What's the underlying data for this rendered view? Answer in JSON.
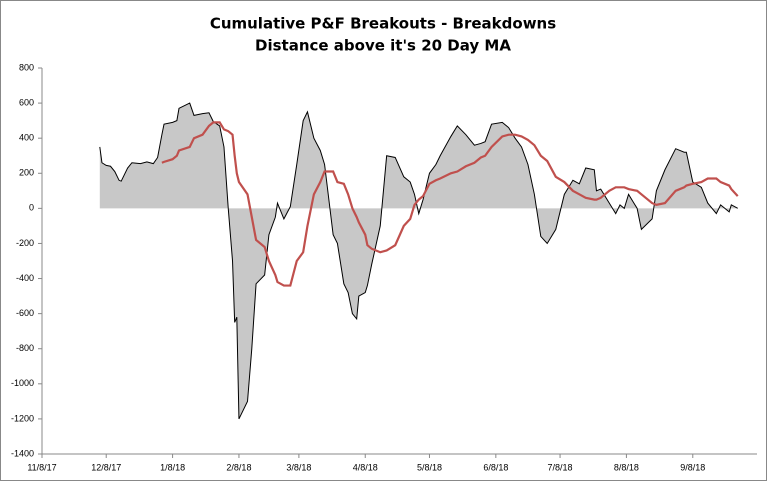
{
  "chart_data": {
    "type": "area",
    "title": "Cumulative P&F Breakouts - Breakdowns",
    "subtitle": "Distance above it's 20 Day MA",
    "x": [
      "2017-12-05",
      "2017-12-06",
      "2017-12-08",
      "2017-12-10",
      "2017-12-12",
      "2017-12-14",
      "2017-12-15",
      "2017-12-18",
      "2017-12-20",
      "2017-12-24",
      "2017-12-27",
      "2017-12-30",
      "2018-01-01",
      "2018-01-03",
      "2018-01-04",
      "2018-01-08",
      "2018-01-10",
      "2018-01-11",
      "2018-01-16",
      "2018-01-18",
      "2018-01-22",
      "2018-01-25",
      "2018-01-27",
      "2018-01-30",
      "2018-02-01",
      "2018-02-03",
      "2018-02-05",
      "2018-02-06",
      "2018-02-07",
      "2018-02-08",
      "2018-02-12",
      "2018-02-14",
      "2018-02-16",
      "2018-02-20",
      "2018-02-22",
      "2018-02-25",
      "2018-02-26",
      "2018-03-01",
      "2018-03-04",
      "2018-03-07",
      "2018-03-10",
      "2018-03-12",
      "2018-03-15",
      "2018-03-18",
      "2018-03-20",
      "2018-03-24",
      "2018-03-26",
      "2018-03-29",
      "2018-03-31",
      "2018-04-02",
      "2018-04-04",
      "2018-04-05",
      "2018-04-08",
      "2018-04-09",
      "2018-04-11",
      "2018-04-15",
      "2018-04-18",
      "2018-04-22",
      "2018-04-26",
      "2018-04-29",
      "2018-05-01",
      "2018-05-03",
      "2018-05-05",
      "2018-05-08",
      "2018-05-11",
      "2018-05-13",
      "2018-05-18",
      "2018-05-21",
      "2018-05-25",
      "2018-05-29",
      "2018-06-01",
      "2018-06-03",
      "2018-06-06",
      "2018-06-11",
      "2018-06-14",
      "2018-06-17",
      "2018-06-20",
      "2018-06-23",
      "2018-06-26",
      "2018-06-29",
      "2018-07-02",
      "2018-07-06",
      "2018-07-10",
      "2018-07-14",
      "2018-07-17",
      "2018-07-20",
      "2018-07-24",
      "2018-07-25",
      "2018-07-27",
      "2018-07-31",
      "2018-08-03",
      "2018-08-05",
      "2018-08-07",
      "2018-08-09",
      "2018-08-13",
      "2018-08-15",
      "2018-08-20",
      "2018-08-22",
      "2018-08-26",
      "2018-08-31",
      "2018-09-04",
      "2018-09-05",
      "2018-09-08",
      "2018-09-12",
      "2018-09-15",
      "2018-09-19",
      "2018-09-21",
      "2018-09-25",
      "2018-09-26",
      "2018-09-29"
    ],
    "series": [
      {
        "color": "#c8c8c8",
        "line_color": "#000000",
        "values": [
          350,
          260,
          245,
          240,
          210,
          160,
          155,
          230,
          260,
          255,
          265,
          255,
          290,
          420,
          480,
          490,
          500,
          570,
          600,
          530,
          540,
          545,
          495,
          470,
          350,
          0,
          -300,
          -650,
          -620,
          -1200,
          -1100,
          -800,
          -430,
          -380,
          -150,
          -50,
          30,
          -60,
          10,
          250,
          500,
          550,
          400,
          330,
          250,
          -150,
          -200,
          -430,
          -480,
          -600,
          -630,
          -500,
          -480,
          -440,
          -320,
          -100,
          300,
          290,
          180,
          150,
          80,
          -30,
          50,
          200,
          250,
          300,
          410,
          470,
          420,
          360,
          370,
          380,
          480,
          490,
          460,
          400,
          350,
          250,
          80,
          -160,
          -200,
          -120,
          80,
          160,
          140,
          230,
          220,
          100,
          110,
          30,
          -30,
          20,
          0,
          80,
          0,
          -120,
          -60,
          100,
          220,
          340,
          320,
          320,
          150,
          120,
          30,
          -30,
          20,
          -20,
          20,
          0
        ]
      },
      {
        "type": "line",
        "color": "#c0504d",
        "values": [
          null,
          null,
          null,
          null,
          null,
          null,
          null,
          null,
          null,
          null,
          null,
          null,
          null,
          260,
          265,
          280,
          300,
          330,
          350,
          400,
          420,
          470,
          490,
          490,
          450,
          440,
          420,
          300,
          200,
          150,
          80,
          -50,
          -180,
          -220,
          -300,
          -380,
          -420,
          -440,
          -440,
          -300,
          -250,
          -100,
          80,
          150,
          210,
          210,
          150,
          140,
          80,
          0,
          -50,
          -80,
          -150,
          -210,
          -230,
          -250,
          -240,
          -210,
          -100,
          -60,
          20,
          50,
          70,
          140,
          160,
          170,
          200,
          210,
          240,
          260,
          290,
          300,
          350,
          410,
          420,
          420,
          410,
          390,
          360,
          300,
          270,
          180,
          150,
          100,
          80,
          60,
          50,
          50,
          60,
          100,
          120,
          120,
          120,
          110,
          100,
          80,
          30,
          20,
          30,
          100,
          120,
          130,
          140,
          150,
          170,
          170,
          150,
          130,
          110,
          70
        ]
      }
    ],
    "xlim": [
      "2017-11-08",
      "2018-10-08"
    ],
    "xticks": [
      {
        "value": "2017-11-08",
        "label": "11/8/17"
      },
      {
        "value": "2017-12-08",
        "label": "12/8/17"
      },
      {
        "value": "2018-01-08",
        "label": "1/8/18"
      },
      {
        "value": "2018-02-08",
        "label": "2/8/18"
      },
      {
        "value": "2018-03-08",
        "label": "3/8/18"
      },
      {
        "value": "2018-04-08",
        "label": "4/8/18"
      },
      {
        "value": "2018-05-08",
        "label": "5/8/18"
      },
      {
        "value": "2018-06-08",
        "label": "6/8/18"
      },
      {
        "value": "2018-07-08",
        "label": "7/8/18"
      },
      {
        "value": "2018-08-08",
        "label": "8/8/18"
      },
      {
        "value": "2018-09-08",
        "label": "9/8/18"
      }
    ],
    "ylim": [
      -1400,
      800
    ],
    "yticks": [
      -1400,
      -1200,
      -1000,
      -800,
      -600,
      -400,
      -200,
      0,
      200,
      400,
      600,
      800
    ],
    "grid": false
  }
}
